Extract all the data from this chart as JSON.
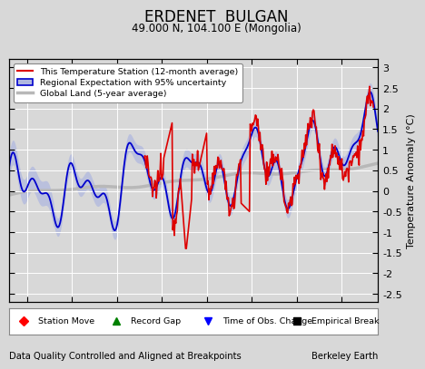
{
  "title": "ERDENET  BULGAN",
  "subtitle": "49.000 N, 104.100 E (Mongolia)",
  "ylabel": "Temperature Anomaly (°C)",
  "xlabel_bottom": "Data Quality Controlled and Aligned at Breakpoints",
  "xlabel_right": "Berkeley Earth",
  "ylim": [
    -2.7,
    3.2
  ],
  "xlim": [
    1958.0,
    1999.0
  ],
  "yticks": [
    -2.5,
    -2,
    -1.5,
    -1,
    -0.5,
    0,
    0.5,
    1,
    1.5,
    2,
    2.5,
    3
  ],
  "xticks": [
    1960,
    1965,
    1970,
    1975,
    1980,
    1985,
    1990,
    1995
  ],
  "bg_color": "#d8d8d8",
  "plot_bg_color": "#d8d8d8",
  "grid_color": "#ffffff",
  "station_color": "#dd0000",
  "regional_color": "#0000cc",
  "regional_fill_color": "#b0b8e0",
  "global_color": "#b8b8b8",
  "legend_items": [
    {
      "label": "This Temperature Station (12-month average)",
      "color": "#dd0000",
      "lw": 1.5
    },
    {
      "label": "Regional Expectation with 95% uncertainty",
      "color": "#0000cc",
      "lw": 1.5
    },
    {
      "label": "Global Land (5-year average)",
      "color": "#b8b8b8",
      "lw": 2.5
    }
  ],
  "marker_legend": [
    {
      "label": "Station Move",
      "color": "red",
      "marker": "D"
    },
    {
      "label": "Record Gap",
      "color": "green",
      "marker": "^"
    },
    {
      "label": "Time of Obs. Change",
      "color": "blue",
      "marker": "v"
    },
    {
      "label": "Empirical Break",
      "color": "black",
      "marker": "s"
    }
  ]
}
